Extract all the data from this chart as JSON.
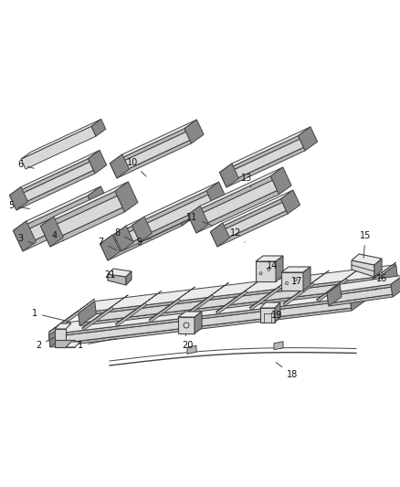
{
  "bg_color": "#ffffff",
  "lc": "#444444",
  "fc_light": "#d8d8d8",
  "fc_mid": "#b8b8b8",
  "fc_dark": "#888888",
  "fc_top": "#ebebeb",
  "figsize": [
    4.38,
    5.33
  ],
  "dpi": 100
}
